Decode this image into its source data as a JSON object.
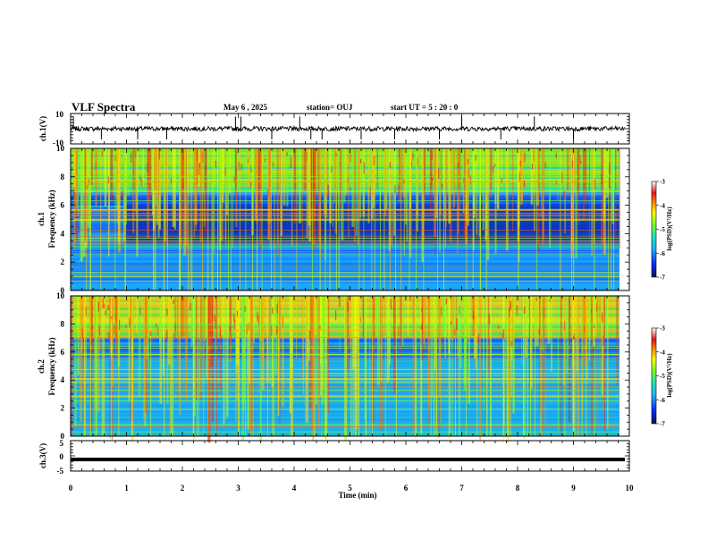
{
  "header": {
    "title": "VLF Spectra",
    "date": "May 6 , 2025",
    "station": "station= OUJ",
    "start": "start UT =  5 : 20 : 0"
  },
  "colors": {
    "colormap": [
      "#08105a",
      "#0a2cff",
      "#1eb4ff",
      "#1ee6b4",
      "#78ff1e",
      "#ffff00",
      "#ff8c00",
      "#e61414",
      "#ffffff"
    ],
    "trace": "#000000",
    "axis": "#000000"
  },
  "chart_data": [
    {
      "type": "line",
      "id": "ch1",
      "ylabel": "ch.1(V)",
      "ylim": [
        -10,
        10
      ],
      "ytick_labels": [
        "10",
        "-10"
      ],
      "xlim": [
        0,
        10
      ],
      "approx_level": 0,
      "noise_band": [
        -1.5,
        1.5
      ],
      "spikes": [
        0.05,
        0.55,
        1.2,
        1.72,
        2.95,
        3.05,
        3.6,
        4.1,
        4.3,
        4.5,
        5.2,
        5.8,
        6.6,
        7.0,
        7.7,
        8.3,
        9.0
      ]
    },
    {
      "type": "heatmap",
      "id": "ch2",
      "ylabel": "ch.1\nFrequency (kHz)",
      "ylabel_lines": [
        "ch.1",
        "Frequency (kHz)"
      ],
      "ylim": [
        0,
        10
      ],
      "ytick_labels": [
        "10",
        "8",
        "6",
        "4",
        "2",
        "0"
      ],
      "xlim": [
        0,
        10
      ],
      "data_end_min": 9.82,
      "colorbar": {
        "label": "log(PSD)(V²/Hz)",
        "range": [
          -7,
          -3
        ],
        "tick_labels": [
          "-3",
          "-4",
          "-5",
          "-6",
          "-7"
        ]
      }
    },
    {
      "type": "heatmap",
      "id": "ch3",
      "ylabel": "ch.2\nFrequency (kHz)",
      "ylabel_lines": [
        "ch.2",
        "Frequency (kHz)"
      ],
      "ylim": [
        0,
        10
      ],
      "ytick_labels": [
        "10",
        "8",
        "6",
        "4",
        "2",
        "0"
      ],
      "xlim": [
        0,
        10
      ],
      "data_end_min": 9.82,
      "colorbar": {
        "label": "log(PSD)(V²/Hz)",
        "range": [
          -7,
          -3
        ],
        "tick_labels": [
          "-3",
          "-4",
          "-5",
          "-6",
          "-7"
        ]
      }
    },
    {
      "type": "line",
      "id": "ch4",
      "ylabel": "ch.3(V)",
      "ylim": [
        -5,
        5
      ],
      "ytick_labels": [
        "5",
        "0",
        "-5"
      ],
      "xlim": [
        0,
        10
      ],
      "approx_level": -1.2
    }
  ],
  "x_axis": {
    "label": "Time (min)",
    "tick_labels": [
      "0",
      "1",
      "2",
      "3",
      "4",
      "5",
      "6",
      "7",
      "8",
      "9",
      "10"
    ],
    "range": [
      0,
      10
    ]
  }
}
